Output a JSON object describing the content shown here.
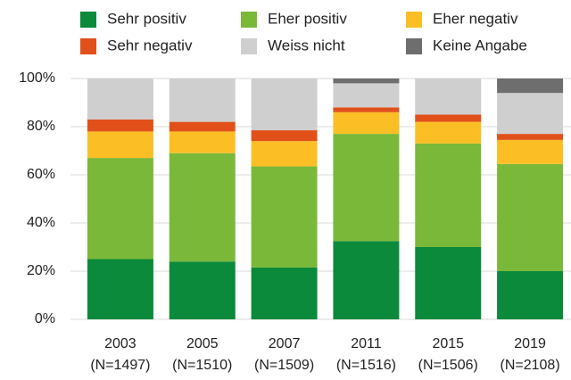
{
  "chart_data": {
    "type": "stacked_bar",
    "categories": [
      [
        "2003",
        "(N=1497)"
      ],
      [
        "2005",
        "(N=1510)"
      ],
      [
        "2007",
        "(N=1509)"
      ],
      [
        "2011",
        "(N=1516)"
      ],
      [
        "2015",
        "(N=1506)"
      ],
      [
        "2019",
        "(N=2108)"
      ]
    ],
    "series": [
      {
        "name": "Sehr positiv",
        "color": "#0a8a3a",
        "values": [
          25,
          24,
          21.5,
          32.5,
          30,
          20
        ]
      },
      {
        "name": "Eher positiv",
        "color": "#7ab83a",
        "values": [
          42,
          45,
          42,
          44.5,
          43,
          44.5
        ]
      },
      {
        "name": "Eher negativ",
        "color": "#fbbf25",
        "values": [
          11,
          9,
          10.5,
          9,
          9,
          10
        ]
      },
      {
        "name": "Sehr negativ",
        "color": "#e2501a",
        "values": [
          5,
          4,
          4.5,
          2,
          3,
          2.5
        ]
      },
      {
        "name": "Weiss nicht",
        "color": "#cfcfcf",
        "values": [
          17,
          18,
          21.5,
          10,
          15,
          17
        ]
      },
      {
        "name": "Keine Angabe",
        "color": "#6e6e6e",
        "values": [
          0,
          0,
          0,
          2,
          0,
          6
        ]
      }
    ],
    "ylim": [
      0,
      100
    ],
    "yticks": [
      {
        "value": 0,
        "label": "0%"
      },
      {
        "value": 20,
        "label": "20%"
      },
      {
        "value": 40,
        "label": "40%"
      },
      {
        "value": 60,
        "label": "60%"
      },
      {
        "value": 80,
        "label": "80%"
      },
      {
        "value": 100,
        "label": "100%"
      }
    ],
    "grid": true
  }
}
